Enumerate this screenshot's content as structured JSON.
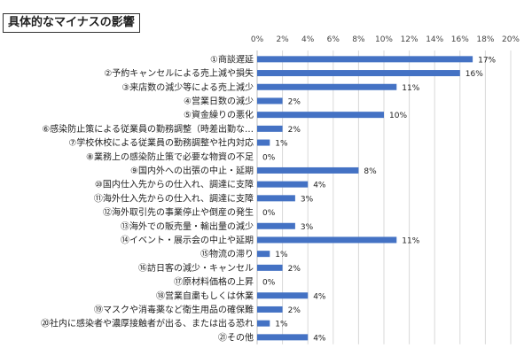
{
  "chart_data": {
    "type": "bar",
    "orientation": "horizontal",
    "title": "具体的なマイナスの影響",
    "categories": [
      "①商談遅延",
      "②予約キャンセルによる売上減や損失",
      "③来店数の減少等による売上減少",
      "④営業日数の減少",
      "⑤資金繰りの悪化",
      "⑥感染防止策による従業員の勤務調整（時差出勤な…",
      "⑦学校休校による従業員の勤務調整や社内対応",
      "⑧業務上の感染防止策で必要な物資の不足",
      "⑨国内外への出張の中止・延期",
      "⑩国内仕入先からの仕入れ、調達に支障",
      "⑪海外仕入先からの仕入れ、調達に支障",
      "⑫海外取引先の事業停止や倒産の発生",
      "⑬海外での販売量・輸出量の減少",
      "⑭イベント・展示会の中止や延期",
      "⑮物流の滞り",
      "⑯訪日客の減少・キャンセル",
      "⑰原材料価格の上昇",
      "⑱営業自粛もしくは休業",
      "⑲マスクや消毒薬など衛生用品の確保難",
      "⑳社内に感染者や濃厚接触者が出る、または出る恐れ",
      "㉑その他"
    ],
    "values": [
      17,
      16,
      11,
      2,
      10,
      2,
      1,
      0,
      8,
      4,
      3,
      0,
      3,
      11,
      1,
      2,
      0,
      4,
      2,
      1,
      4
    ],
    "data_labels": [
      "17%",
      "16%",
      "11%",
      "2%",
      "10%",
      "2%",
      "1%",
      "0%",
      "8%",
      "4%",
      "3%",
      "0%",
      "3%",
      "11%",
      "1%",
      "2%",
      "0%",
      "4%",
      "2%",
      "1%",
      "4%"
    ],
    "x_ticks": [
      "0%",
      "2%",
      "4%",
      "6%",
      "8%",
      "10%",
      "12%",
      "14%",
      "16%",
      "18%",
      "20%"
    ],
    "xlim": [
      0,
      20
    ],
    "grid": true,
    "legend": "none",
    "bar_color": "#4472C4"
  }
}
